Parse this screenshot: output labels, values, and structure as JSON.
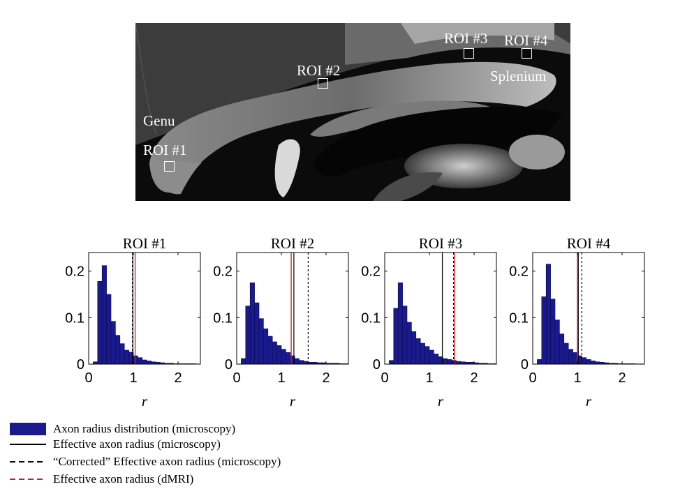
{
  "image": {
    "labels": {
      "genu": "Genu",
      "splenium": "Splenium",
      "roi1": "ROI #1",
      "roi2": "ROI #2",
      "roi3": "ROI #3",
      "roi4": "ROI #4"
    }
  },
  "chart_data": [
    {
      "type": "bar",
      "title": "ROI #1",
      "xlabel": "r",
      "ylabel": "",
      "xlim": [
        0,
        2.5
      ],
      "ylim": [
        0,
        0.24
      ],
      "xticks": [
        "0",
        "1",
        "2"
      ],
      "yticks": [
        "0",
        "0.1",
        "0.2"
      ],
      "bin_width": 0.1,
      "bin_start": 0.1,
      "values": [
        0.005,
        0.178,
        0.212,
        0.15,
        0.092,
        0.062,
        0.044,
        0.03,
        0.026,
        0.018,
        0.014,
        0.009,
        0.007,
        0.005,
        0.004,
        0.003,
        0.002,
        0.002,
        0.001,
        0.001,
        0.001,
        0.001,
        0.001,
        0.0005
      ],
      "lines": {
        "effective": 0.99,
        "corrected": 0.98,
        "dmri": 1.04
      },
      "colors": {
        "bar": "#1a1a8c",
        "effective": "#000000",
        "corrected": "#000000",
        "dmri": "#e0151b"
      }
    },
    {
      "type": "bar",
      "title": "ROI #2",
      "xlabel": "r",
      "ylabel": "",
      "xlim": [
        0,
        2.5
      ],
      "ylim": [
        0,
        0.24
      ],
      "xticks": [
        "0",
        "1",
        "2"
      ],
      "yticks": [
        "0",
        "0.1",
        "0.2"
      ],
      "bin_width": 0.1,
      "bin_start": 0.1,
      "values": [
        0.012,
        0.125,
        0.175,
        0.132,
        0.098,
        0.076,
        0.06,
        0.048,
        0.04,
        0.032,
        0.025,
        0.018,
        0.012,
        0.008,
        0.006,
        0.004,
        0.004,
        0.003,
        0.003,
        0.002,
        0.002,
        0.002,
        0.001,
        0.001
      ],
      "lines": {
        "effective": 1.28,
        "corrected": 1.6,
        "dmri": 1.22
      },
      "colors": {
        "bar": "#1a1a8c",
        "effective": "#000000",
        "corrected": "#000000",
        "dmri": "#e0151b"
      }
    },
    {
      "type": "bar",
      "title": "ROI #3",
      "xlabel": "r",
      "ylabel": "",
      "xlim": [
        0,
        2.5
      ],
      "ylim": [
        0,
        0.24
      ],
      "xticks": [
        "0",
        "1",
        "2"
      ],
      "yticks": [
        "0",
        "0.1",
        "0.2"
      ],
      "bin_width": 0.1,
      "bin_start": 0.1,
      "values": [
        0.008,
        0.12,
        0.175,
        0.125,
        0.09,
        0.07,
        0.055,
        0.045,
        0.038,
        0.03,
        0.022,
        0.016,
        0.012,
        0.01,
        0.008,
        0.006,
        0.005,
        0.004,
        0.004,
        0.003,
        0.002,
        0.002,
        0.001,
        0.001
      ],
      "lines": {
        "effective": 1.29,
        "corrected": 1.54,
        "dmri": 1.56
      },
      "colors": {
        "bar": "#1a1a8c",
        "effective": "#000000",
        "corrected": "#000000",
        "dmri": "#e0151b"
      }
    },
    {
      "type": "bar",
      "title": "ROI #4",
      "xlabel": "r",
      "ylabel": "",
      "xlim": [
        0,
        2.5
      ],
      "ylim": [
        0,
        0.24
      ],
      "xticks": [
        "0",
        "1",
        "2"
      ],
      "yticks": [
        "0",
        "0.1",
        "0.2"
      ],
      "bin_width": 0.1,
      "bin_start": 0.1,
      "values": [
        0.01,
        0.145,
        0.215,
        0.14,
        0.095,
        0.065,
        0.045,
        0.032,
        0.025,
        0.018,
        0.014,
        0.01,
        0.007,
        0.005,
        0.004,
        0.003,
        0.002,
        0.002,
        0.001,
        0.001,
        0.001,
        0.001,
        0.0005,
        0.0005
      ],
      "lines": {
        "effective": 1.02,
        "corrected": 1.1,
        "dmri": 1.0
      },
      "colors": {
        "bar": "#1a1a8c",
        "effective": "#000000",
        "corrected": "#000000",
        "dmri": "#e0151b"
      }
    }
  ],
  "legend": [
    {
      "label": "Axon radius distribution (microscopy)",
      "kind": "patch",
      "color": "#1a1a8c"
    },
    {
      "label": "Effective axon radius (microscopy)",
      "kind": "solid",
      "color": "#000000"
    },
    {
      "label": "“Corrected” Effective axon radius (microscopy)",
      "kind": "dashed",
      "color": "#000000"
    },
    {
      "label": "Effective axon radius (dMRI)",
      "kind": "dashed",
      "color": "#e0151b"
    }
  ]
}
